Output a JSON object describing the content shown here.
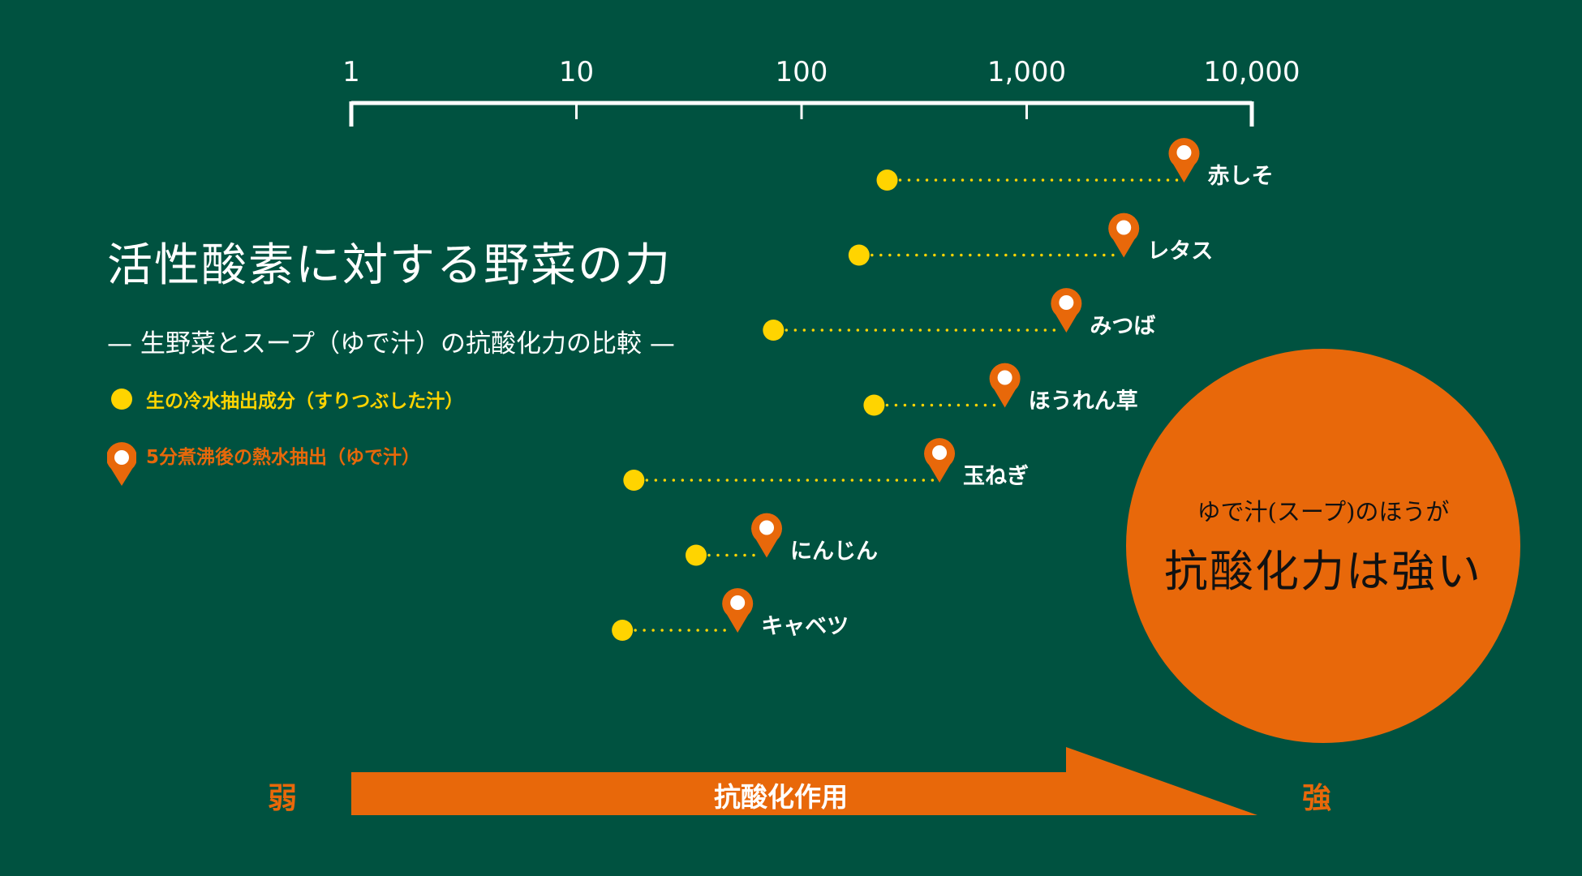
{
  "title": "活性酸素に対する野菜の力",
  "subtitle": "— 生野菜とスープ（ゆで汁）の抗酸化力の比較 —",
  "legend": {
    "raw": "生の冷水抽出成分（すりつぶした汁）",
    "boiled": "5分煮沸後の熱水抽出（ゆで汁）"
  },
  "callout": {
    "sub": "ゆで汁(スープ)のほうが",
    "main": "抗酸化力は強い"
  },
  "bottom": {
    "arrow_label": "抗酸化作用",
    "weak": "弱",
    "strong": "強"
  },
  "colors": {
    "background": "#005240",
    "raw": "#ffd400",
    "boiled": "#e8680a",
    "text": "#ffffff"
  },
  "chart_data": {
    "type": "scatter",
    "x_scale": "log",
    "xlim": [
      1,
      10000
    ],
    "x_ticks": [
      "1",
      "10",
      "100",
      "1,000",
      "10,000"
    ],
    "categories": [
      "赤しそ",
      "レタス",
      "みつば",
      "ほうれん草",
      "玉ねぎ",
      "にんじん",
      "キャベツ"
    ],
    "series": [
      {
        "name": "生の冷水抽出成分（すりつぶした汁）",
        "values": [
          240,
          180,
          75,
          210,
          18,
          34,
          16
        ]
      },
      {
        "name": "5分煮沸後の熱水抽出（ゆで汁）",
        "values": [
          5000,
          2700,
          1500,
          800,
          410,
          70,
          52
        ]
      }
    ]
  }
}
